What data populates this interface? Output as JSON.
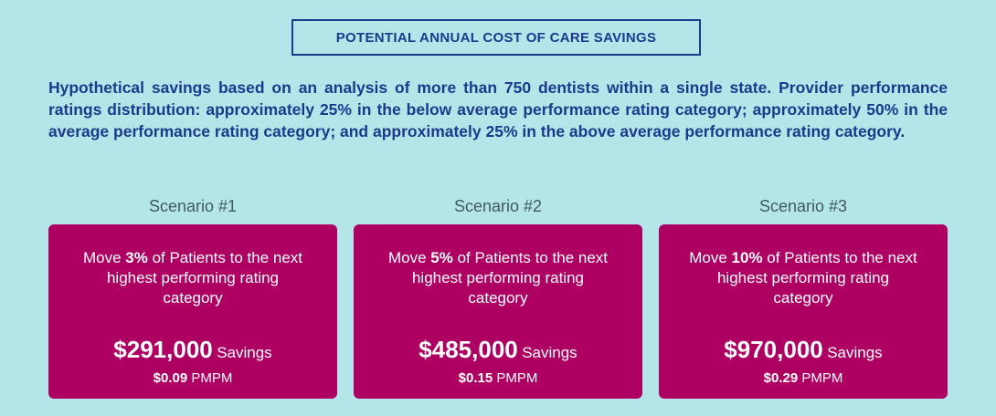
{
  "header": {
    "title": "POTENTIAL ANNUAL COST OF CARE SAVINGS"
  },
  "description": "Hypothetical savings based on an analysis of more than 750 dentists within a single state. Provider performance ratings distribution: approximately 25% in the below average performance rating category; approximately 50% in the average performance rating category; and approximately 25% in the above average performance rating category.",
  "colors": {
    "background": "#b4e6e9",
    "navy": "#1b3a8c",
    "card": "#ad0062"
  },
  "scenarios": [
    {
      "label": "Scenario #1",
      "move_prefix": "Move ",
      "percent": "3%",
      "move_suffix": " of Patients to the next highest performing rating category",
      "amount": "$291,000",
      "savings_word": "Savings",
      "pmpm_value": "$0.09",
      "pmpm_label": "PMPM"
    },
    {
      "label": "Scenario #2",
      "move_prefix": "Move ",
      "percent": "5%",
      "move_suffix": " of Patients to the next highest performing rating category",
      "amount": "$485,000",
      "savings_word": "Savings",
      "pmpm_value": "$0.15",
      "pmpm_label": "PMPM"
    },
    {
      "label": "Scenario #3",
      "move_prefix": "Move ",
      "percent": "10%",
      "move_suffix": " of Patients to the next highest performing rating category",
      "amount": "$970,000",
      "savings_word": "Savings",
      "pmpm_value": "$0.29",
      "pmpm_label": "PMPM"
    }
  ]
}
